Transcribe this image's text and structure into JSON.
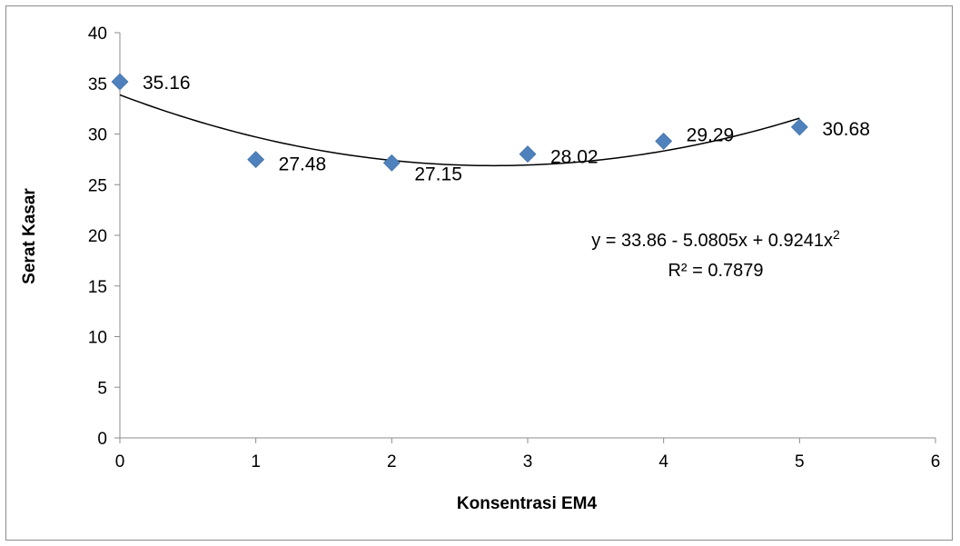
{
  "chart_data": {
    "type": "scatter",
    "title": "",
    "xlabel": "Konsentrasi EM4",
    "ylabel": "Serat Kasar",
    "xlim": [
      0,
      6
    ],
    "ylim": [
      0,
      40
    ],
    "x_ticks": [
      0,
      1,
      2,
      3,
      4,
      5,
      6
    ],
    "y_ticks": [
      0,
      5,
      10,
      15,
      20,
      25,
      30,
      35,
      40
    ],
    "grid": false,
    "legend": "none",
    "series": [
      {
        "x": [
          0,
          1,
          2,
          3,
          4,
          5
        ],
        "y": [
          35.16,
          27.48,
          27.15,
          28.02,
          29.29,
          30.68
        ],
        "data_labels": [
          "35.16",
          "27.48",
          "27.15",
          "28.02",
          "29.29",
          "30.68"
        ],
        "marker": "diamond",
        "color": "#4f81bd"
      }
    ],
    "trendline": {
      "type": "polynomial",
      "coefficients": [
        33.86,
        -5.0805,
        0.9241
      ],
      "x_range": [
        0,
        5
      ],
      "color": "#000000",
      "equation": "y = 33.86 - 5.0805x + 0.9241x",
      "equation_superscript": "2",
      "r_squared": "R² = 0.7879"
    }
  }
}
